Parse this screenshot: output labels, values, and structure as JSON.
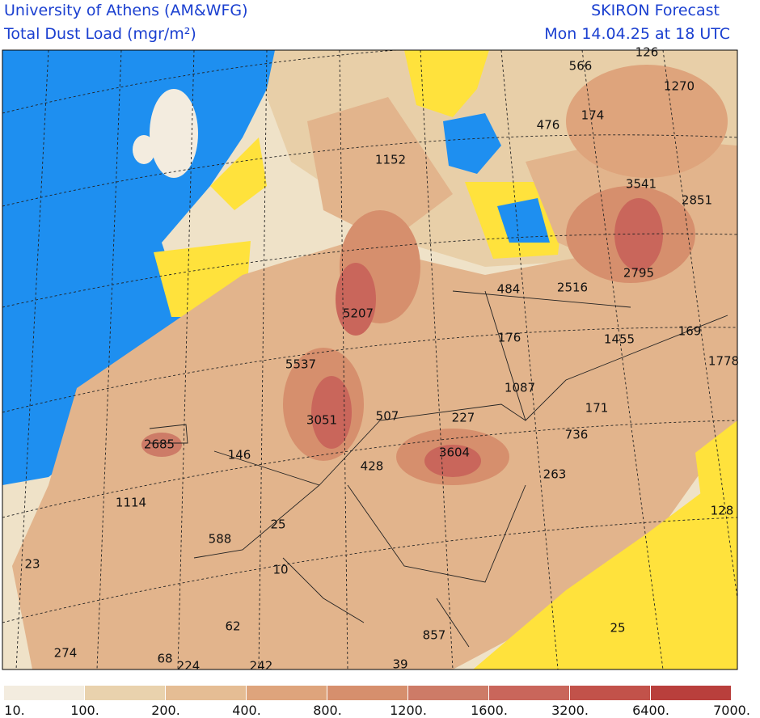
{
  "header": {
    "institution": "University of Athens (AM&WFG)",
    "variable": "Total Dust Load (mgr/m²)",
    "model": "SKIRON Forecast",
    "time": "Mon 14.04.25 at 18 UTC"
  },
  "map": {
    "labels": [
      126,
      566,
      1270,
      476,
      174,
      1152,
      3541,
      2851,
      2795,
      484,
      2516,
      5207,
      176,
      1455,
      169,
      1778,
      5537,
      1087,
      171,
      3051,
      507,
      227,
      736,
      2685,
      146,
      3604,
      428,
      263,
      1114,
      128,
      25,
      588,
      23,
      10,
      62,
      25,
      857,
      274,
      68,
      224,
      242,
      39
    ]
  },
  "colorbar": {
    "colors": [
      "#f3ecdf",
      "#e9d2ad",
      "#e5bd94",
      "#dea47c",
      "#d68f6d",
      "#cd7b67",
      "#c9665b",
      "#c2524a",
      "#b93f3c"
    ],
    "labels": [
      "10.",
      "100.",
      "200.",
      "400.",
      "800.",
      "1200.",
      "1600.",
      "3200.",
      "6400.",
      "7000."
    ]
  }
}
